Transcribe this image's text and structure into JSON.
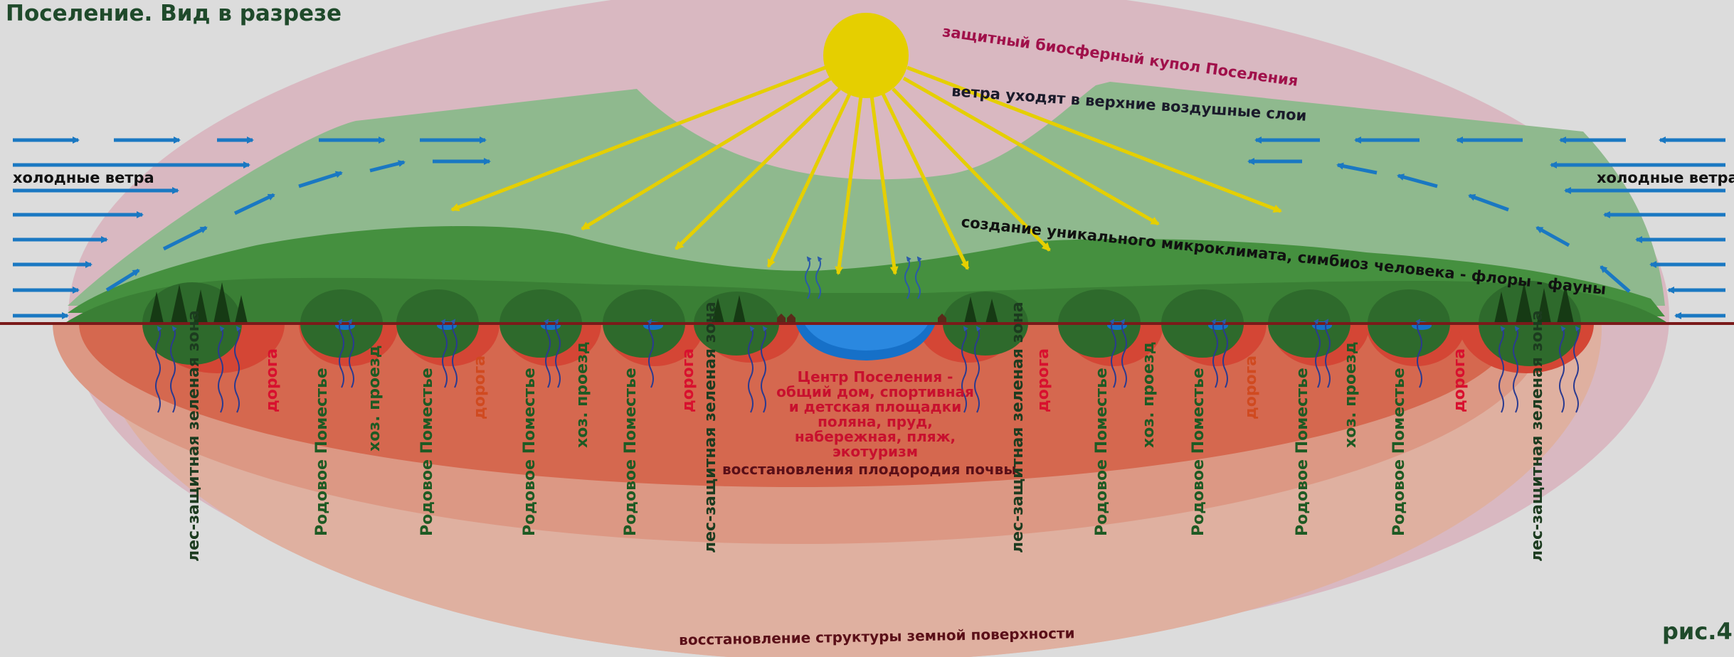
{
  "title": "Поселение. Вид в разрезе",
  "figure_label": "рис.4",
  "labels": {
    "dome": "защитный биосферный купол Поселения",
    "winds_up": "ветра уходят в верхние воздушные слои",
    "cold_winds_left": "холодные ветра",
    "cold_winds_right": "холодные ветра",
    "microclimate": "создание уникального микроклимата, симбиоз человека - флоры - фауны",
    "center": [
      "Центр Поселения -",
      "общий дом, спортивная",
      "и детская площадки",
      "поляна, пруд, набережная, пляж,",
      "экотуризм"
    ],
    "soil": "восстановления плодородия почвы",
    "surface": "восстановление структуры земной поверхности"
  },
  "zones": {
    "forest": "лес-защитная зеленая зона",
    "road": "дорога",
    "estate": "Родовое Поместье",
    "service_road": "хоз. проезд"
  },
  "colors": {
    "background": "#dcdcdc",
    "dome": "#d9b8c1",
    "title": "#1f4a2b",
    "forest_text": "#1c3b1f",
    "estate_text": "#1e5a23",
    "road_text": "#d8102e",
    "service_text": "#1e5a23",
    "dome_text": "#a0104a",
    "wind_arrow": "#1a78c2",
    "sun": "#e5cf00",
    "pond": "#1670c8"
  }
}
